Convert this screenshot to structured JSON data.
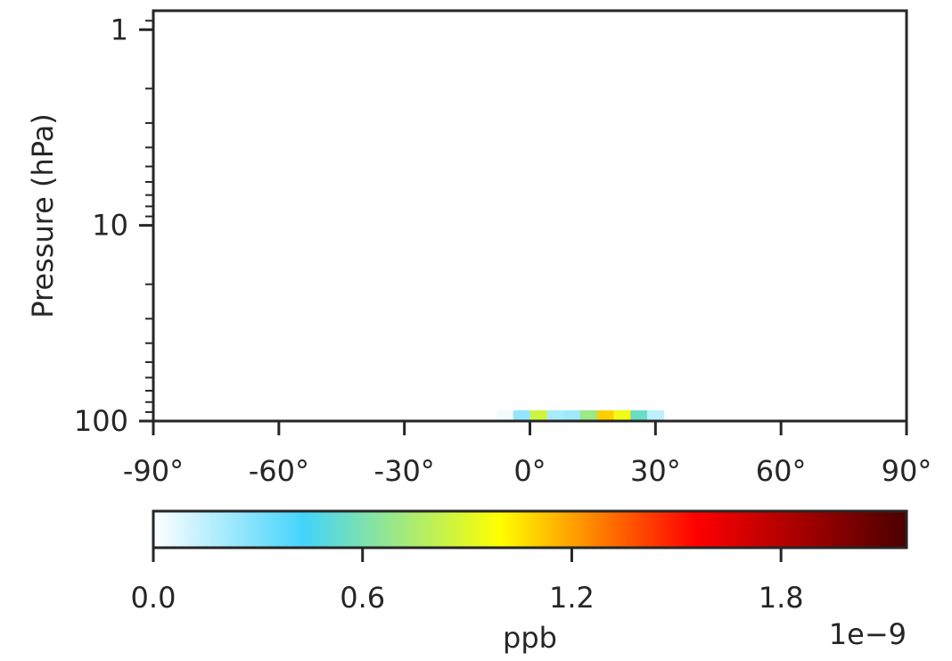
{
  "chart_data": {
    "type": "heatmap",
    "title": "",
    "ylabel": "Pressure (hPa)",
    "xlabel": "",
    "y_scale": "log",
    "y_inverted": true,
    "ylim": [
      100,
      0.8
    ],
    "xlim": [
      -90,
      90
    ],
    "x_ticks": [
      -90,
      -60,
      -30,
      0,
      30,
      60,
      90
    ],
    "x_tick_labels": [
      "-90°",
      "-60°",
      "-30°",
      "0°",
      "30°",
      "60°",
      "90°"
    ],
    "y_ticks": [
      1,
      10,
      100
    ],
    "y_tick_labels": [
      "1",
      "10",
      "100"
    ],
    "cells": {
      "y_range": [
        100,
        110
      ],
      "lat_edges": [
        -8,
        -4,
        0,
        4,
        8,
        12,
        16,
        20,
        24,
        28,
        32
      ],
      "values": [
        0.03,
        0.25,
        0.85,
        0.2,
        0.22,
        0.7,
        1.1,
        0.95,
        0.55,
        0.15
      ]
    },
    "colorbar": {
      "label": "ppb",
      "range": [
        0,
        2.16
      ],
      "ticks": [
        0.0,
        0.6,
        1.2,
        1.8
      ],
      "tick_labels": [
        "0.0",
        "0.6",
        "1.2",
        "1.8"
      ],
      "offset_text": "1e−9",
      "colormap_stops": [
        {
          "v": 0.0,
          "color": "#ffffff"
        },
        {
          "v": 0.2,
          "color": "#43d4fb"
        },
        {
          "v": 0.46,
          "color": "#ffff00"
        },
        {
          "v": 0.72,
          "color": "#ff0000"
        },
        {
          "v": 1.0,
          "color": "#4b0000"
        }
      ]
    }
  }
}
